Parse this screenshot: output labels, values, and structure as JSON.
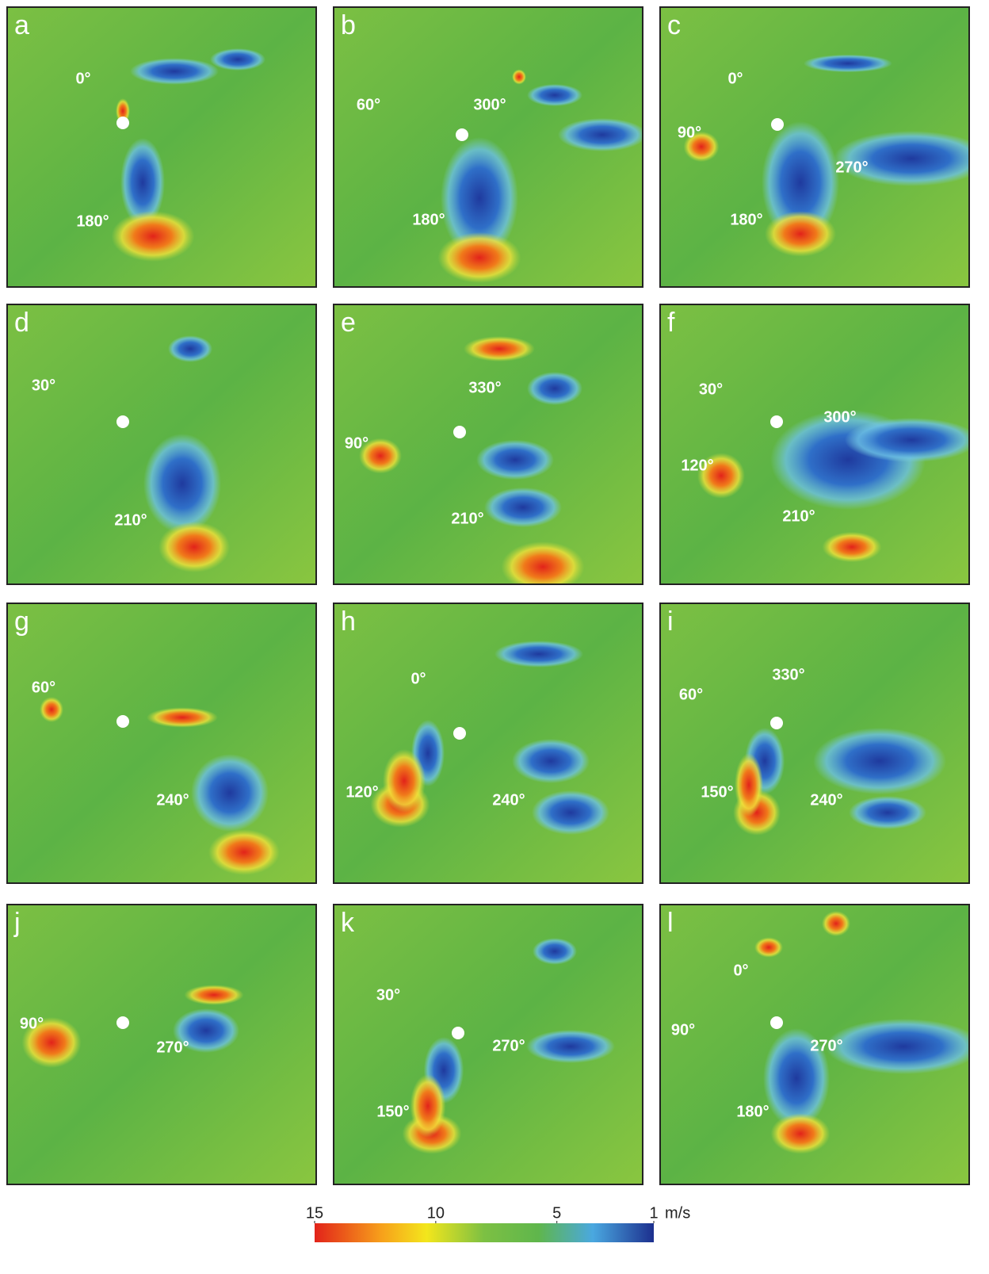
{
  "panels": [
    {
      "letter": "a",
      "angles": [
        "0°",
        "180°"
      ]
    },
    {
      "letter": "b",
      "angles": [
        "60°",
        "300°",
        "180°"
      ]
    },
    {
      "letter": "c",
      "angles": [
        "0°",
        "90°",
        "270°",
        "180°"
      ]
    },
    {
      "letter": "d",
      "angles": [
        "30°",
        "210°"
      ]
    },
    {
      "letter": "e",
      "angles": [
        "330°",
        "90°",
        "210°"
      ]
    },
    {
      "letter": "f",
      "angles": [
        "30°",
        "300°",
        "120°",
        "210°"
      ]
    },
    {
      "letter": "g",
      "angles": [
        "60°",
        "240°"
      ]
    },
    {
      "letter": "h",
      "angles": [
        "0°",
        "120°",
        "240°"
      ]
    },
    {
      "letter": "i",
      "angles": [
        "330°",
        "60°",
        "150°",
        "240°"
      ]
    },
    {
      "letter": "j",
      "angles": [
        "90°",
        "270°"
      ]
    },
    {
      "letter": "k",
      "angles": [
        "30°",
        "270°",
        "150°"
      ]
    },
    {
      "letter": "l",
      "angles": [
        "0°",
        "90°",
        "270°",
        "180°"
      ]
    }
  ],
  "colorbar": {
    "lim": [
      15,
      1
    ],
    "ticks": [
      15,
      10,
      5,
      1
    ],
    "unit": "m/s"
  }
}
